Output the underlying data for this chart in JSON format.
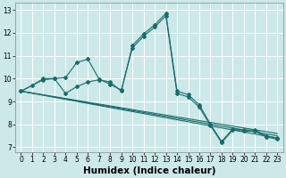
{
  "xlabel": "Humidex (Indice chaleur)",
  "bg_color": "#cce8e8",
  "line_color": "#1a6b6b",
  "grid_color": "#ffffff",
  "xlim": [
    -0.5,
    23.5
  ],
  "ylim": [
    6.8,
    13.3
  ],
  "xticks": [
    0,
    1,
    2,
    3,
    4,
    5,
    6,
    7,
    8,
    9,
    10,
    11,
    12,
    13,
    14,
    15,
    16,
    17,
    18,
    19,
    20,
    21,
    22,
    23
  ],
  "yticks": [
    7,
    8,
    9,
    10,
    11,
    12,
    13
  ],
  "series": [
    {
      "x": [
        0,
        1,
        2,
        3,
        4,
        5,
        6,
        7,
        8,
        9,
        10,
        11,
        12,
        13,
        14,
        15,
        16,
        17,
        18,
        19,
        20,
        21,
        22,
        23
      ],
      "y": [
        9.45,
        9.7,
        10.0,
        10.0,
        9.35,
        9.65,
        9.85,
        9.95,
        9.85,
        9.45,
        11.45,
        11.95,
        12.35,
        12.85,
        9.45,
        9.3,
        8.85,
        8.0,
        7.25,
        7.8,
        7.75,
        7.75,
        7.5,
        7.4
      ]
    },
    {
      "x": [
        0,
        2,
        3,
        4,
        5,
        6,
        7,
        8,
        9,
        10,
        11,
        12,
        13,
        14,
        15,
        16,
        17,
        18,
        19,
        20,
        21,
        22,
        23
      ],
      "y": [
        9.45,
        9.95,
        10.0,
        10.05,
        10.7,
        10.85,
        9.98,
        9.75,
        9.5,
        11.35,
        11.85,
        12.25,
        12.75,
        9.35,
        9.2,
        8.75,
        7.95,
        7.2,
        7.75,
        7.7,
        7.7,
        7.45,
        7.35
      ]
    },
    {
      "x": [
        0,
        23
      ],
      "y": [
        9.45,
        7.4
      ],
      "markers": false
    },
    {
      "x": [
        0,
        23
      ],
      "y": [
        9.45,
        7.5
      ],
      "markers": false
    },
    {
      "x": [
        0,
        23
      ],
      "y": [
        9.45,
        7.6
      ],
      "markers": false
    }
  ],
  "figsize": [
    3.2,
    2.0
  ],
  "dpi": 100,
  "tick_fontsize": 5.5,
  "xlabel_fontsize": 7.5
}
